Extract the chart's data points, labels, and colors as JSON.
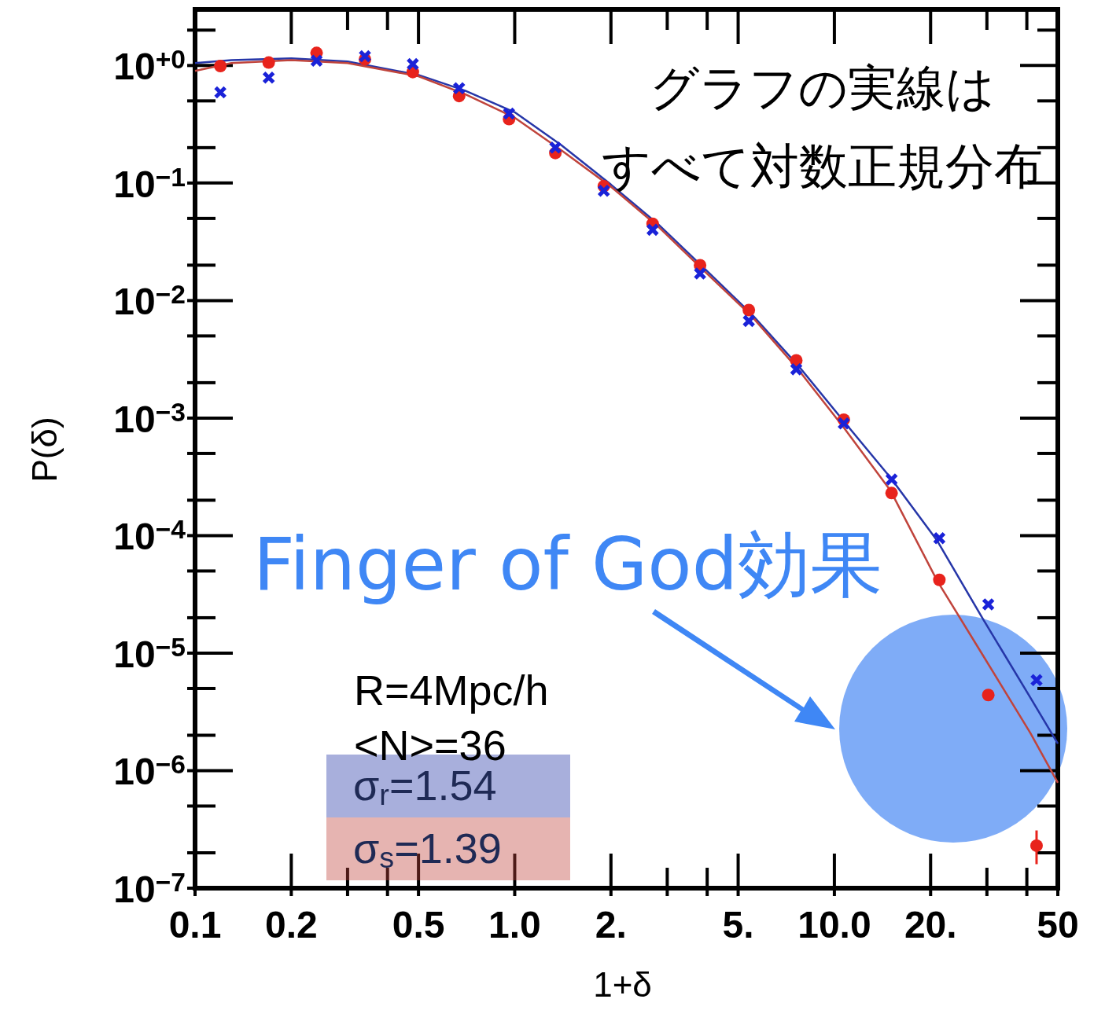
{
  "chart_data": {
    "type": "scatter",
    "xlabel": "1+δ",
    "ylabel": "P(δ)",
    "log": "xy",
    "grid": false,
    "legend": "bottom left",
    "xlim": [
      0.1,
      50
    ],
    "ylim": [
      1e-07,
      3
    ],
    "xticks": [
      {
        "value": 0.1,
        "label": "0.1"
      },
      {
        "value": 0.2,
        "label": "0.2"
      },
      {
        "value": 0.3,
        "label": null
      },
      {
        "value": 0.4,
        "label": null
      },
      {
        "value": 0.5,
        "label": "0.5"
      },
      {
        "value": 1,
        "label": "1.0"
      },
      {
        "value": 2,
        "label": "2."
      },
      {
        "value": 3,
        "label": null
      },
      {
        "value": 4,
        "label": null
      },
      {
        "value": 5,
        "label": "5."
      },
      {
        "value": 10,
        "label": "10.0"
      },
      {
        "value": 20,
        "label": "20."
      },
      {
        "value": 30,
        "label": null
      },
      {
        "value": 40,
        "label": null
      },
      {
        "value": 50,
        "label": "50"
      }
    ],
    "yticks": [
      {
        "value": 2,
        "label": null
      },
      {
        "value": 1,
        "label": "10$^{+0}$"
      },
      {
        "value": 0.5,
        "label": null
      },
      {
        "value": 0.2,
        "label": null
      },
      {
        "value": 0.1,
        "label": "10$^{−1}$"
      },
      {
        "value": 0.05,
        "label": null
      },
      {
        "value": 0.02,
        "label": null
      },
      {
        "value": 0.01,
        "label": "10$^{−2}$"
      },
      {
        "value": 0.005,
        "label": null
      },
      {
        "value": 0.002,
        "label": null
      },
      {
        "value": 0.001,
        "label": "10$^{−3}$"
      },
      {
        "value": 0.0005,
        "label": null
      },
      {
        "value": 0.0002,
        "label": null
      },
      {
        "value": 0.0001,
        "label": "10$^{−4}$"
      },
      {
        "value": 5e-05,
        "label": null
      },
      {
        "value": 2e-05,
        "label": null
      },
      {
        "value": 1e-05,
        "label": "10$^{−5}$"
      },
      {
        "value": 5e-06,
        "label": null
      },
      {
        "value": 2e-06,
        "label": null
      },
      {
        "value": 1e-06,
        "label": "10$^{−6}$"
      },
      {
        "value": 5e-07,
        "label": null
      },
      {
        "value": 2e-07,
        "label": null
      },
      {
        "value": 1e-07,
        "label": "10$^{−7}$"
      }
    ],
    "x": [
      0.12,
      0.17,
      0.24,
      0.34,
      0.48,
      0.67,
      0.96,
      1.34,
      1.9,
      2.7,
      3.8,
      5.4,
      7.6,
      10.7,
      15.1,
      21.3,
      30.3,
      42.9
    ],
    "series": [
      {
        "color": "#1a22d8",
        "marker": "cross",
        "values": [
          0.59,
          0.79,
          1.1,
          1.2,
          1.03,
          0.64,
          0.39,
          0.2,
          0.086,
          0.04,
          0.017,
          0.0067,
          0.0026,
          0.0009,
          0.0003,
          9.5e-05,
          2.6e-05,
          5.9e-06
        ]
      },
      {
        "color": "#e8231c",
        "marker": "circle",
        "values": [
          0.99,
          1.06,
          1.28,
          1.13,
          0.88,
          0.55,
          0.35,
          0.18,
          0.094,
          0.045,
          0.02,
          0.0083,
          0.0031,
          0.00097,
          0.00023,
          4.2e-05,
          4.4e-06,
          2.3e-07
        ],
        "errors": [
          null,
          null,
          null,
          null,
          null,
          null,
          null,
          null,
          null,
          null,
          null,
          null,
          null,
          null,
          null,
          null,
          null,
          [
            1.6e-07,
            3.1e-07
          ]
        ]
      },
      {
        "type": "line",
        "name": "σ$_{r}$=1.54",
        "color": "#2636a8",
        "line_style": "solid",
        "x": [
          0.1,
          0.13,
          0.2,
          0.3,
          0.5,
          0.7,
          1,
          1.4,
          2,
          2.8,
          3.9,
          5.5,
          7.7,
          10.7,
          15,
          21,
          29,
          41,
          50
        ],
        "values": [
          1.05,
          1.11,
          1.15,
          1.08,
          0.83,
          0.61,
          0.4,
          0.21,
          0.097,
          0.045,
          0.019,
          0.0077,
          0.0028,
          0.00094,
          0.00031,
          9e-05,
          2e-05,
          4.2e-06,
          1.7e-06
        ]
      },
      {
        "type": "line",
        "name": "σ$_{s}$=1.39",
        "color": "#c0443c",
        "line_style": "solid",
        "x": [
          0.1,
          0.13,
          0.2,
          0.3,
          0.5,
          0.7,
          1,
          1.4,
          2,
          2.8,
          3.9,
          5.5,
          7.7,
          10.7,
          15,
          21,
          29,
          41,
          50
        ],
        "values": [
          0.9,
          1.05,
          1.11,
          1.05,
          0.81,
          0.57,
          0.36,
          0.19,
          0.093,
          0.043,
          0.018,
          0.0074,
          0.0026,
          0.00083,
          0.00024,
          4.1e-05,
          9.8e-06,
          2.1e-06,
          7.9e-07
        ]
      }
    ],
    "annotations": [
      "グラフの実線は",
      "すべて対数正規分布",
      "Finger of God効果",
      "R=4Mpc/h",
      "<N>=36"
    ]
  }
}
